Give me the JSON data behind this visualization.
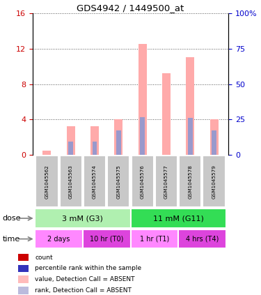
{
  "title": "GDS4942 / 1449500_at",
  "samples": [
    "GSM1045562",
    "GSM1045563",
    "GSM1045574",
    "GSM1045575",
    "GSM1045576",
    "GSM1045577",
    "GSM1045578",
    "GSM1045579"
  ],
  "pink_bars": [
    0.5,
    3.2,
    3.2,
    4.0,
    12.5,
    9.2,
    11.0,
    4.0
  ],
  "blue_bars": [
    0.0,
    1.5,
    1.5,
    2.8,
    4.3,
    0.0,
    4.2,
    2.8
  ],
  "ylim_left": [
    0,
    16
  ],
  "ylim_right": [
    0,
    100
  ],
  "yticks_left": [
    0,
    4,
    8,
    12,
    16
  ],
  "ytick_labels_left": [
    "0",
    "4",
    "8",
    "12",
    "16"
  ],
  "yticks_right": [
    0,
    25,
    50,
    75,
    100
  ],
  "ytick_labels_right": [
    "0",
    "25",
    "50",
    "75",
    "100%"
  ],
  "dose_groups": [
    {
      "label": "3 mM (G3)",
      "start": 0,
      "end": 4,
      "color": "#b0f0b0"
    },
    {
      "label": "11 mM (G11)",
      "start": 4,
      "end": 8,
      "color": "#33dd55"
    }
  ],
  "time_groups": [
    {
      "label": "2 days",
      "start": 0,
      "end": 2,
      "color": "#ff88ff"
    },
    {
      "label": "10 hr (T0)",
      "start": 2,
      "end": 4,
      "color": "#dd44dd"
    },
    {
      "label": "1 hr (T1)",
      "start": 4,
      "end": 6,
      "color": "#ff88ff"
    },
    {
      "label": "4 hrs (T4)",
      "start": 6,
      "end": 8,
      "color": "#dd44dd"
    }
  ],
  "legend_items": [
    {
      "label": "count",
      "color": "#cc0000"
    },
    {
      "label": "percentile rank within the sample",
      "color": "#3333bb"
    },
    {
      "label": "value, Detection Call = ABSENT",
      "color": "#ffbbbb"
    },
    {
      "label": "rank, Detection Call = ABSENT",
      "color": "#bbbbdd"
    }
  ],
  "bar_width": 0.35,
  "pink_color": "#ffaaaa",
  "blue_color": "#9999cc",
  "left_axis_color": "#cc0000",
  "right_axis_color": "#0000cc",
  "grid_color": "#555555",
  "bg_color": "#ffffff",
  "sample_box_color": "#c8c8c8"
}
